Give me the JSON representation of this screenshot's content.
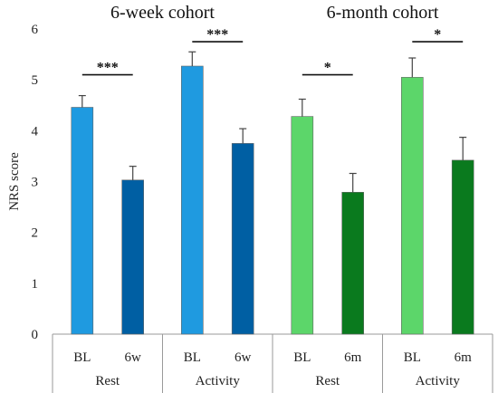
{
  "chart_data": {
    "type": "bar",
    "ylabel": "NRS score",
    "ylim": [
      0,
      6
    ],
    "yticks": [
      0,
      1,
      2,
      3,
      4,
      5,
      6
    ],
    "grid": false,
    "cohorts": [
      {
        "title": "6-week cohort"
      },
      {
        "title": "6-month cohort"
      }
    ],
    "groups": [
      {
        "label": "Rest",
        "cohort": 0
      },
      {
        "label": "Activity",
        "cohort": 0
      },
      {
        "label": "Rest",
        "cohort": 1
      },
      {
        "label": "Activity",
        "cohort": 1
      }
    ],
    "bars": [
      {
        "label": "BL",
        "group": 0,
        "value": 4.46,
        "error": 0.23,
        "color": "#1f9ae0"
      },
      {
        "label": "6w",
        "group": 0,
        "value": 3.03,
        "error": 0.27,
        "color": "#005fa3"
      },
      {
        "label": "BL",
        "group": 1,
        "value": 5.27,
        "error": 0.28,
        "color": "#1f9ae0"
      },
      {
        "label": "6w",
        "group": 1,
        "value": 3.75,
        "error": 0.29,
        "color": "#005fa3"
      },
      {
        "label": "BL",
        "group": 2,
        "value": 4.28,
        "error": 0.34,
        "color": "#5cd66a"
      },
      {
        "label": "6m",
        "group": 2,
        "value": 2.79,
        "error": 0.37,
        "color": "#0a7a1e"
      },
      {
        "label": "BL",
        "group": 3,
        "value": 5.05,
        "error": 0.38,
        "color": "#5cd66a"
      },
      {
        "label": "6m",
        "group": 3,
        "value": 3.42,
        "error": 0.45,
        "color": "#0a7a1e"
      }
    ],
    "significance": [
      {
        "group": 0,
        "label": "***",
        "y": 5.1
      },
      {
        "group": 1,
        "label": "***",
        "y": 5.75
      },
      {
        "group": 2,
        "label": "*",
        "y": 5.1
      },
      {
        "group": 3,
        "label": "*",
        "y": 5.75
      }
    ]
  }
}
